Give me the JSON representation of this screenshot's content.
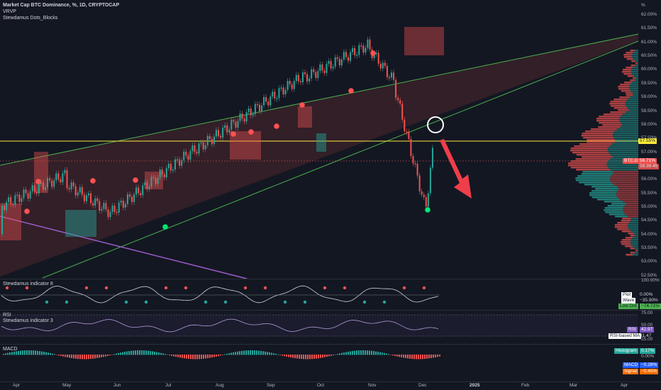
{
  "header": {
    "title": "Market Cap BTC Dominance, %, 1D, CRYPTOCAP",
    "indicator_1": "VRVP",
    "indicator_2": "Stewdamus Dots_Blocks",
    "unit": "%"
  },
  "price_axis": [
    "62.00%",
    "61.50%",
    "61.00%",
    "60.50%",
    "60.00%",
    "59.50%",
    "59.00%",
    "58.50%",
    "58.00%",
    "57.50%",
    "57.00%",
    "56.50%",
    "56.00%",
    "55.50%",
    "55.00%",
    "54.50%",
    "54.00%",
    "53.50%",
    "53.00%",
    "52.50%"
  ],
  "price_tags": {
    "level_tag": "57.55%",
    "btc_d_label": "BTC.D",
    "btc_d_value": "56.71%",
    "sub_value": "55.39.45"
  },
  "time_axis": [
    "Apr",
    "May",
    "Jun",
    "Jul",
    "Aug",
    "Sep",
    "Oct",
    "Nov",
    "Dec",
    "2025",
    "Feb",
    "Mar",
    "Apr"
  ],
  "osc_pane": {
    "title": "Stewdamus indicator 8",
    "axis_top": "100.00%",
    "rows": [
      {
        "label": "Plot",
        "value": "0.00%"
      },
      {
        "label": "Wave",
        "value": "−35.90%"
      },
      {
        "label": "Low Dot",
        "value": "−74.71%"
      }
    ]
  },
  "rsi_pane": {
    "title_1": "RSI",
    "title_2": "Stewdamus indicator 3",
    "axis": [
      "75.00",
      "50.00",
      "25.00"
    ],
    "rsi_label": "RSI",
    "rsi_value": "42.97",
    "ma_label": "RSI-based MA",
    "ma_value": "31.47"
  },
  "macd_pane": {
    "title": "MACD",
    "histogram_label": "Histogram",
    "histogram_value": "0.17%",
    "zero_value": "0.00%",
    "macd_label": "MACD",
    "macd_value": "−0.28%",
    "signal_label": "Signal",
    "signal_value": "−0.45%"
  },
  "colors": {
    "background": "#131722",
    "up": "#26a69a",
    "down": "#ef5350",
    "channel_line": "#4caf50",
    "level_line": "#ffeb3b",
    "trend_line": "#9c5cc7",
    "arrow": "#ef3e4a"
  }
}
